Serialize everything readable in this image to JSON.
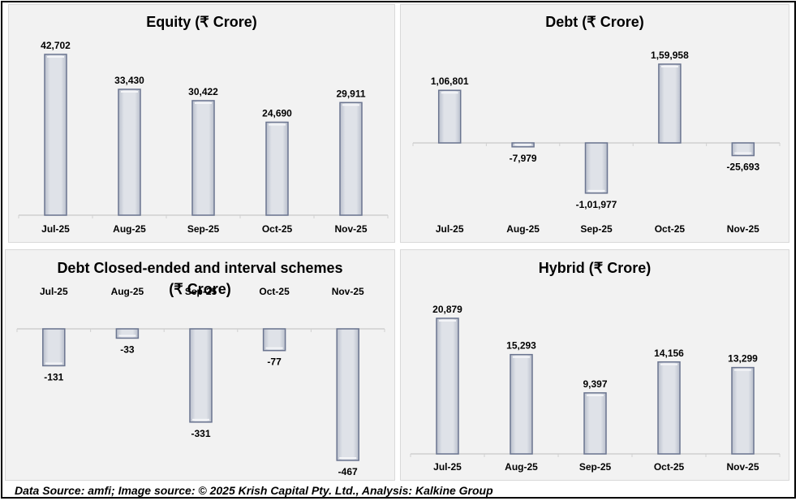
{
  "footer": "Data Source: amfi; Image source: © 2025 Krish Capital Pty. Ltd., Analysis: Kalkine Group",
  "colors": {
    "panel_bg": "#f2f2f2",
    "bar_fill": "#d6d9e0",
    "bar_edge": "#6b7590",
    "axis": "#d0d0d0"
  },
  "chart_data": [
    {
      "type": "bar",
      "title": "Equity (₹ Crore)",
      "categories": [
        "Jul-25",
        "Aug-25",
        "Sep-25",
        "Oct-25",
        "Nov-25"
      ],
      "values": [
        42702,
        33430,
        30422,
        24690,
        29911
      ],
      "labels": [
        "42,702",
        "33,430",
        "30,422",
        "24,690",
        "29,911"
      ],
      "xlabel": "",
      "ylabel": "",
      "grid": false,
      "legend": "none"
    },
    {
      "type": "bar",
      "title": "Debt (₹ Crore)",
      "categories": [
        "Jul-25",
        "Aug-25",
        "Sep-25",
        "Oct-25",
        "Nov-25"
      ],
      "values": [
        106801,
        -7979,
        -101977,
        159958,
        -25693
      ],
      "labels": [
        "1,06,801",
        "-7,979",
        "-1,01,977",
        "1,59,958",
        "-25,693"
      ],
      "xlabel": "",
      "ylabel": "",
      "grid": false,
      "legend": "none"
    },
    {
      "type": "bar",
      "title": "Debt Closed-ended and interval schemes",
      "title_line2": "(₹ Crore)",
      "categories": [
        "Jul-25",
        "Aug-25",
        "Sep-25",
        "Oct-25",
        "Nov-25"
      ],
      "values": [
        -131,
        -33,
        -331,
        -77,
        -467
      ],
      "labels": [
        "-131",
        "-33",
        "-331",
        "-77",
        "-467"
      ],
      "xlabel": "",
      "ylabel": "",
      "grid": false,
      "legend": "none"
    },
    {
      "type": "bar",
      "title": "Hybrid (₹ Crore)",
      "categories": [
        "Jul-25",
        "Aug-25",
        "Sep-25",
        "Oct-25",
        "Nov-25"
      ],
      "values": [
        20879,
        15293,
        9397,
        14156,
        13299
      ],
      "labels": [
        "20,879",
        "15,293",
        "9,397",
        "14,156",
        "13,299"
      ],
      "xlabel": "",
      "ylabel": "",
      "grid": false,
      "legend": "none"
    }
  ]
}
